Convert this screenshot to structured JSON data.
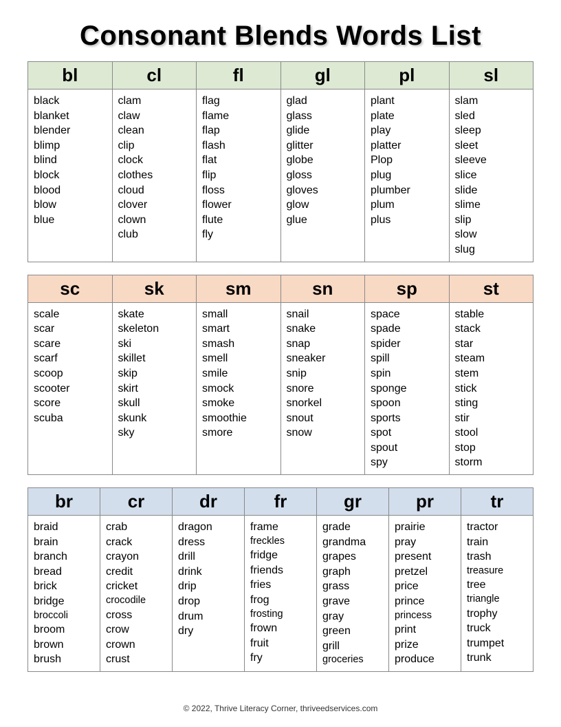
{
  "title": "Consonant Blends Words List",
  "footer": "© 2022, Thrive Literacy Corner, thriveedservices.com",
  "sections": [
    {
      "header_color": "#dde9d3",
      "header_class": "hdr-green",
      "cols": 6,
      "blends": [
        {
          "label": "bl",
          "words": [
            "black",
            "blanket",
            "blender",
            "blimp",
            "blind",
            "block",
            "blood",
            "blow",
            "blue"
          ]
        },
        {
          "label": "cl",
          "words": [
            "clam",
            "claw",
            "clean",
            "clip",
            "clock",
            "clothes",
            "cloud",
            "clover",
            "clown",
            "club"
          ]
        },
        {
          "label": "fl",
          "words": [
            "flag",
            "flame",
            "flap",
            "flash",
            "flat",
            "flip",
            "floss",
            "flower",
            "flute",
            "fly"
          ]
        },
        {
          "label": "gl",
          "words": [
            "glad",
            "glass",
            "glide",
            "glitter",
            "globe",
            "gloss",
            "gloves",
            "glow",
            "glue"
          ]
        },
        {
          "label": "pl",
          "words": [
            "plant",
            "plate",
            "play",
            "platter",
            "Plop",
            "plug",
            "plumber",
            "plum",
            "plus"
          ]
        },
        {
          "label": "sl",
          "words": [
            "slam",
            "sled",
            "sleep",
            "sleet",
            "sleeve",
            "slice",
            "slide",
            "slime",
            "slip",
            "slow",
            "slug"
          ]
        }
      ]
    },
    {
      "header_color": "#f8d9c4",
      "header_class": "hdr-peach",
      "cols": 6,
      "blends": [
        {
          "label": "sc",
          "words": [
            "scale",
            "scar",
            "scare",
            "scarf",
            "scoop",
            "scooter",
            "score",
            "scuba"
          ]
        },
        {
          "label": "sk",
          "words": [
            "skate",
            "skeleton",
            "ski",
            "skillet",
            "skip",
            "skirt",
            "skull",
            "skunk",
            "sky"
          ]
        },
        {
          "label": "sm",
          "words": [
            "small",
            "smart",
            "smash",
            "smell",
            "smile",
            "smock",
            "smoke",
            "smoothie",
            "smore"
          ]
        },
        {
          "label": "sn",
          "words": [
            "snail",
            "snake",
            "snap",
            "sneaker",
            "snip",
            "snore",
            "snorkel",
            "snout",
            "snow"
          ]
        },
        {
          "label": "sp",
          "words": [
            "space",
            "spade",
            "spider",
            "spill",
            "spin",
            "sponge",
            "spoon",
            "sports",
            "spot",
            "spout",
            "spy"
          ]
        },
        {
          "label": "st",
          "words": [
            "stable",
            "stack",
            "star",
            "steam",
            "stem",
            "stick",
            "sting",
            "stir",
            "stool",
            "stop",
            "storm"
          ]
        }
      ]
    },
    {
      "header_color": "#d2deec",
      "header_class": "hdr-blue",
      "cols": 7,
      "blends": [
        {
          "label": "br",
          "words": [
            "braid",
            "brain",
            "branch",
            "bread",
            "brick",
            "bridge",
            "broccoli",
            "broom",
            "brown",
            "brush"
          ]
        },
        {
          "label": "cr",
          "words": [
            "crab",
            "crack",
            "crayon",
            "credit",
            "cricket",
            "crocodile",
            "cross",
            "crow",
            "crown",
            "crust"
          ]
        },
        {
          "label": "dr",
          "words": [
            "dragon",
            "dress",
            "drill",
            "drink",
            "drip",
            "drop",
            "drum",
            "dry"
          ]
        },
        {
          "label": "fr",
          "words": [
            "frame",
            "freckles",
            "fridge",
            "friends",
            "fries",
            "frog",
            "frosting",
            "frown",
            "fruit",
            "fry"
          ]
        },
        {
          "label": "gr",
          "words": [
            "grade",
            "grandma",
            "grapes",
            "graph",
            "grass",
            "grave",
            "gray",
            "green",
            "grill",
            "groceries"
          ]
        },
        {
          "label": "pr",
          "words": [
            "prairie",
            "pray",
            "present",
            "pretzel",
            "price",
            "prince",
            "princess",
            "print",
            "prize",
            "produce"
          ]
        },
        {
          "label": "tr",
          "words": [
            "tractor",
            "train",
            "trash",
            "treasure",
            "tree",
            "triangle",
            "trophy",
            "truck",
            "trumpet",
            "trunk"
          ]
        }
      ]
    }
  ]
}
